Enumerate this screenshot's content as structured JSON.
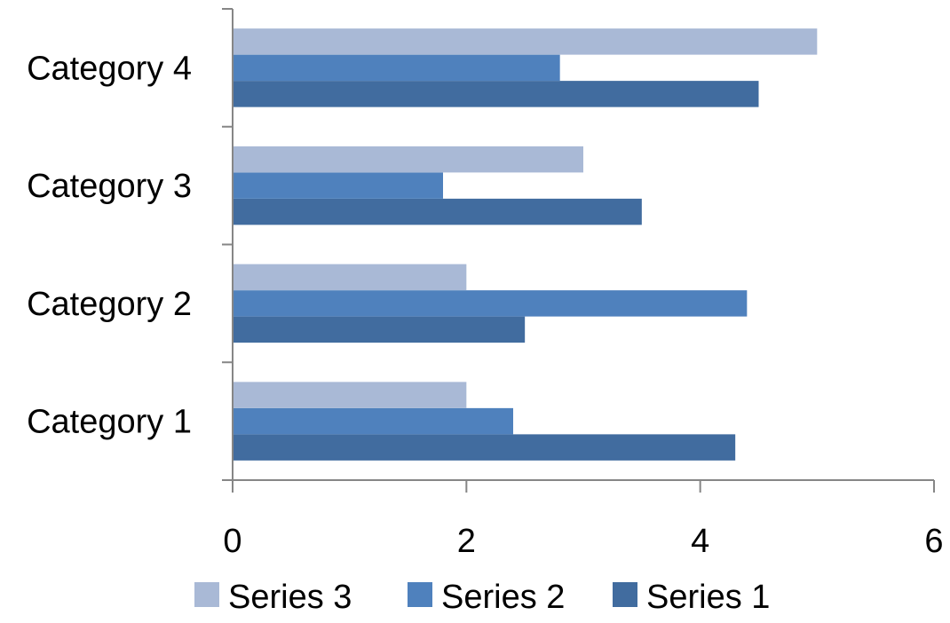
{
  "chart_data": {
    "type": "bar",
    "orientation": "horizontal",
    "title": "",
    "xlabel": "",
    "ylabel": "",
    "categories": [
      "Category 1",
      "Category 2",
      "Category 3",
      "Category 4"
    ],
    "xlim": [
      0,
      6
    ],
    "x_ticks": [
      0,
      2,
      4,
      6
    ],
    "grid": false,
    "legend_position": "bottom",
    "series": [
      {
        "name": "Series 1",
        "color": "#416c9f",
        "values": [
          4.3,
          2.5,
          3.5,
          4.5
        ]
      },
      {
        "name": "Series 2",
        "color": "#4f81bd",
        "values": [
          2.4,
          4.4,
          1.8,
          2.8
        ]
      },
      {
        "name": "Series 3",
        "color": "#a9b9d6",
        "values": [
          2,
          2,
          3,
          5
        ]
      }
    ],
    "legend_order": [
      "Series 3",
      "Series 2",
      "Series 1"
    ]
  }
}
